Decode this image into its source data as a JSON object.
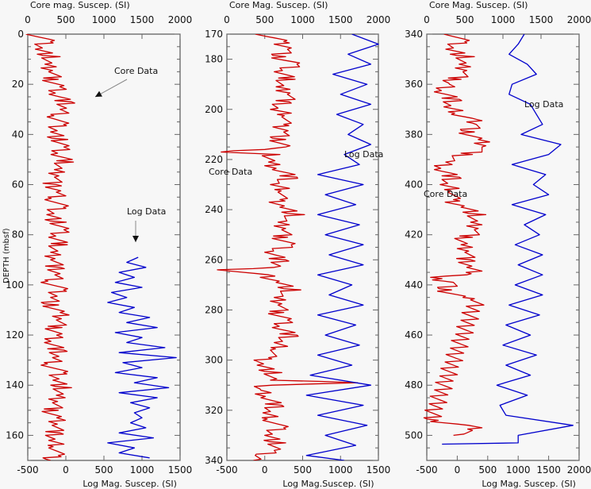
{
  "chart_data": [
    {
      "type": "line",
      "panel": "left",
      "top_axis": {
        "label": "Core mag. Suscep. (SI)",
        "ticks": [
          0,
          500,
          1000,
          1500,
          2000
        ],
        "range": [
          0,
          2000
        ]
      },
      "bottom_axis": {
        "label": "Log Mag. Suscep. (SI)",
        "ticks": [
          -500,
          0,
          500,
          1000,
          1500
        ],
        "range": [
          -500,
          1500
        ]
      },
      "ylabel": "DEPTH (mbsf)",
      "y_ticks": [
        0,
        20,
        40,
        60,
        80,
        100,
        120,
        140,
        160
      ],
      "ylim": [
        0,
        170
      ],
      "annotations": [
        {
          "text": "Core Data",
          "target_series": "Core Data"
        },
        {
          "text": "Log Data",
          "target_series": "Log Data"
        }
      ],
      "series": [
        {
          "name": "Core Data",
          "color": "#cc0000",
          "axis": "top",
          "depth": [
            0,
            3,
            6,
            9,
            12,
            15,
            18,
            21,
            24,
            27,
            30,
            33,
            36,
            39,
            42,
            45,
            48,
            51,
            54,
            57,
            60,
            63,
            66,
            69,
            72,
            75,
            78,
            81,
            84,
            87,
            90,
            93,
            96,
            99,
            102,
            105,
            108,
            111,
            114,
            117,
            120,
            123,
            126,
            129,
            132,
            135,
            138,
            141,
            144,
            147,
            150,
            153,
            156,
            159,
            162,
            165,
            168,
            170
          ],
          "values": [
            100,
            250,
            150,
            300,
            200,
            350,
            300,
            420,
            380,
            500,
            450,
            380,
            420,
            350,
            400,
            450,
            380,
            500,
            350,
            450,
            300,
            400,
            350,
            420,
            300,
            380,
            450,
            350,
            420,
            300,
            400,
            350,
            380,
            300,
            420,
            350,
            280,
            400,
            450,
            350,
            380,
            320,
            400,
            350,
            300,
            420,
            380,
            450,
            350,
            400,
            300,
            380,
            420,
            350,
            300,
            400,
            350,
            300
          ]
        },
        {
          "name": "Log Data",
          "color": "#0000cc",
          "axis": "bottom",
          "depth": [
            89,
            91,
            93,
            95,
            97,
            99,
            101,
            103,
            105,
            107,
            109,
            111,
            113,
            115,
            117,
            119,
            121,
            123,
            125,
            127,
            129,
            131,
            133,
            135,
            137,
            139,
            141,
            143,
            145,
            147,
            149,
            151,
            153,
            155,
            157,
            159,
            161,
            163,
            165,
            167,
            169
          ],
          "values": [
            950,
            800,
            1050,
            700,
            900,
            650,
            1000,
            600,
            800,
            550,
            900,
            700,
            1100,
            800,
            1200,
            650,
            1000,
            800,
            1300,
            700,
            1450,
            750,
            1000,
            650,
            1200,
            900,
            1350,
            700,
            1200,
            850,
            1100,
            900,
            1000,
            850,
            1050,
            700,
            1150,
            550,
            900,
            700,
            1100
          ]
        }
      ]
    },
    {
      "type": "line",
      "panel": "middle",
      "top_axis": {
        "label": "Core Mag. Suscep. (SI)",
        "ticks": [
          0,
          500,
          1000,
          1500,
          2000
        ],
        "range": [
          0,
          2000
        ]
      },
      "bottom_axis": {
        "label": "Log Mag.Suscep. (SI)",
        "ticks": [
          -500,
          0,
          500,
          1000,
          1500
        ],
        "range": [
          -500,
          1500
        ]
      },
      "ylabel": "",
      "y_ticks": [
        180,
        200,
        220,
        240,
        260,
        280,
        300,
        320,
        340
      ],
      "ylim": [
        170,
        340
      ],
      "annotations": [
        {
          "text": "Core Data",
          "target_series": "Core Data"
        },
        {
          "text": "Log Data",
          "target_series": "Log Data"
        }
      ],
      "series": [
        {
          "name": "Core Data",
          "color": "#cc0000",
          "axis": "top",
          "depth": [
            170,
            173,
            176,
            179,
            182,
            185,
            188,
            191,
            194,
            197,
            200,
            203,
            206,
            209,
            212,
            215,
            217,
            218,
            221,
            224,
            227,
            230,
            233,
            236,
            239,
            242,
            245,
            248,
            251,
            254,
            257,
            260,
            263,
            264,
            266,
            269,
            272,
            275,
            278,
            281,
            284,
            287,
            290,
            293,
            296,
            299,
            302,
            305,
            308,
            309,
            310,
            312,
            315,
            318,
            321,
            324,
            327,
            330,
            333,
            336,
            338,
            340
          ],
          "values": [
            500,
            700,
            850,
            650,
            900,
            700,
            800,
            650,
            900,
            750,
            600,
            850,
            700,
            800,
            650,
            750,
            0,
            600,
            550,
            700,
            850,
            600,
            800,
            650,
            750,
            900,
            650,
            800,
            700,
            850,
            600,
            700,
            650,
            0,
            500,
            700,
            850,
            600,
            750,
            650,
            800,
            700,
            850,
            650,
            700,
            500,
            450,
            600,
            550,
            1800,
            500,
            450,
            550,
            650,
            500,
            600,
            700,
            550,
            650,
            600,
            450,
            350
          ]
        },
        {
          "name": "Log Data",
          "color": "#0000cc",
          "axis": "bottom",
          "depth": [
            170,
            174,
            178,
            182,
            186,
            190,
            194,
            198,
            202,
            206,
            210,
            214,
            218,
            222,
            226,
            230,
            234,
            238,
            242,
            246,
            250,
            254,
            258,
            262,
            266,
            270,
            274,
            278,
            282,
            286,
            290,
            294,
            298,
            302,
            306,
            310,
            314,
            318,
            322,
            326,
            330,
            334,
            338,
            340
          ],
          "values": [
            1150,
            1500,
            1100,
            1400,
            900,
            1350,
            1000,
            1400,
            950,
            1300,
            1100,
            1400,
            1050,
            1250,
            700,
            1300,
            800,
            1200,
            700,
            1250,
            800,
            1300,
            850,
            1300,
            700,
            1150,
            850,
            1300,
            700,
            1200,
            800,
            1250,
            700,
            1150,
            600,
            1400,
            550,
            1300,
            700,
            1350,
            800,
            1200,
            550,
            1050
          ]
        }
      ]
    },
    {
      "type": "line",
      "panel": "right",
      "top_axis": {
        "label": "Core Mag. Suscep. (SI)",
        "ticks": [
          0,
          500,
          1000,
          1500,
          2000
        ],
        "range": [
          0,
          2000
        ]
      },
      "bottom_axis": {
        "label": "Log Mag. Suscep. (SI)",
        "ticks": [
          -500,
          0,
          500,
          1000,
          1500,
          2000
        ],
        "range": [
          -500,
          2000
        ]
      },
      "ylabel": "",
      "y_ticks": [
        340,
        360,
        380,
        400,
        420,
        440,
        460,
        480,
        500
      ],
      "ylim": [
        340,
        510
      ],
      "annotations": [
        {
          "text": "Core Data",
          "target_series": "Core Data"
        },
        {
          "text": "Log Data",
          "target_series": "Log Data"
        }
      ],
      "series": [
        {
          "name": "Core Data",
          "color": "#cc0000",
          "axis": "top",
          "depth": [
            340,
            343,
            346,
            349,
            352,
            355,
            358,
            360,
            363,
            366,
            369,
            372,
            374,
            376,
            379,
            382,
            385,
            388,
            391,
            394,
            397,
            400,
            403,
            406,
            409,
            412,
            415,
            418,
            421,
            424,
            427,
            430,
            433,
            436,
            437,
            439,
            442,
            445,
            446,
            494,
            496,
            498,
            500
          ],
          "values": [
            350,
            450,
            300,
            500,
            400,
            550,
            350,
            300,
            200,
            350,
            250,
            450,
            600,
            700,
            500,
            650,
            800,
            500,
            250,
            200,
            350,
            200,
            400,
            300,
            500,
            650,
            550,
            700,
            500,
            450,
            600,
            500,
            550,
            650,
            0,
            400,
            200,
            450,
            650,
            50,
            550,
            700,
            350
          ]
        },
        {
          "name": "Log Data",
          "color": "#0000cc",
          "axis": "bottom",
          "depth": [
            340,
            344,
            348,
            352,
            356,
            360,
            364,
            368,
            372,
            376,
            380,
            384,
            388,
            392,
            396,
            400,
            404,
            408,
            412,
            416,
            420,
            424,
            428,
            432,
            436,
            440,
            444,
            448,
            452,
            456,
            460,
            464,
            468,
            472,
            476,
            480,
            484,
            488,
            492,
            496,
            500,
            503,
            503.5
          ],
          "values": [
            1100,
            1000,
            850,
            1150,
            1300,
            900,
            850,
            1200,
            1300,
            1400,
            1050,
            1700,
            1500,
            900,
            1450,
            1250,
            1500,
            900,
            1450,
            1100,
            1350,
            950,
            1400,
            1000,
            1400,
            950,
            1400,
            850,
            1350,
            800,
            1200,
            750,
            1300,
            800,
            1200,
            650,
            1150,
            700,
            800,
            1900,
            1000,
            1000,
            -250
          ]
        }
      ]
    }
  ]
}
